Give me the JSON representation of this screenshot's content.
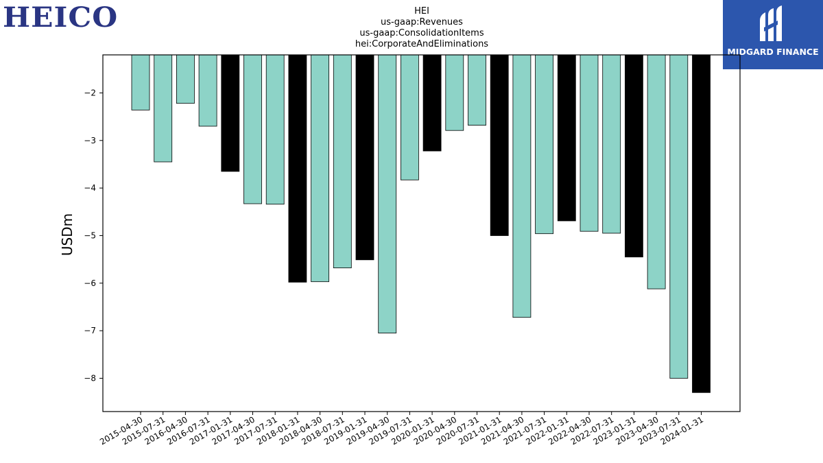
{
  "logos": {
    "left_text": "HEICO",
    "right_text": "MIDGARD FINANCE",
    "right_icon": "midgard-m-icon",
    "right_bg": "#2c56ad",
    "left_color": "#2a3583"
  },
  "chart_data": {
    "type": "bar",
    "title_lines": [
      "HEI",
      "us-gaap:Revenues",
      "us-gaap:ConsolidationItems",
      "hei:CorporateAndEliminations"
    ],
    "xlabel": "",
    "ylabel": "USDm",
    "ylim": [
      -8.7,
      -1.2
    ],
    "yticks": [
      -2,
      -3,
      -4,
      -5,
      -6,
      -7,
      -8
    ],
    "grid": false,
    "colors": {
      "quarter": "#8dd3c7",
      "annual": "#000000"
    },
    "categories": [
      "2015-04-30",
      "2015-07-31",
      "2016-04-30",
      "2016-07-31",
      "2017-01-31",
      "2017-04-30",
      "2017-07-31",
      "2018-01-31",
      "2018-04-30",
      "2018-07-31",
      "2019-01-31",
      "2019-04-30",
      "2019-07-31",
      "2020-01-31",
      "2020-04-30",
      "2020-07-31",
      "2021-01-31",
      "2021-04-30",
      "2021-07-31",
      "2022-01-31",
      "2022-04-30",
      "2022-07-31",
      "2023-01-31",
      "2023-04-30",
      "2023-07-31",
      "2024-01-31"
    ],
    "values": [
      -2.36,
      -3.45,
      -2.22,
      -2.7,
      -3.65,
      -4.33,
      -4.34,
      -5.98,
      -5.97,
      -5.68,
      -5.51,
      -7.05,
      -3.83,
      -3.22,
      -2.79,
      -2.68,
      -5.0,
      -6.72,
      -4.96,
      -4.69,
      -4.91,
      -4.95,
      -5.45,
      -6.12,
      -8.0,
      -8.3
    ],
    "annual": [
      false,
      false,
      false,
      false,
      true,
      false,
      false,
      true,
      false,
      false,
      true,
      false,
      false,
      true,
      false,
      false,
      true,
      false,
      false,
      true,
      false,
      false,
      true,
      false,
      false,
      true
    ]
  }
}
